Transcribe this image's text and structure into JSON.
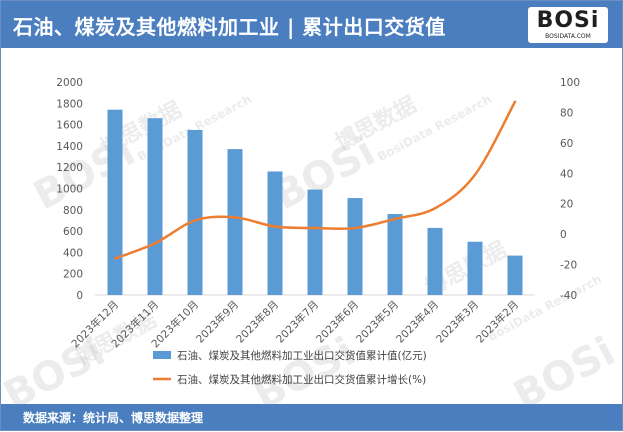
{
  "header": {
    "title": "石油、煤炭及其他燃料加工业 | 累计出口交货值",
    "logo_text": "BOSi",
    "logo_sub": "BOSIDATA.COM"
  },
  "footer": {
    "source": "数据来源：统计局、博思数据整理"
  },
  "watermark": {
    "brand": "BOSi",
    "cn": "博思数据",
    "en": "BosiData Research",
    "site": "BOSIDATA.COM"
  },
  "colors": {
    "header": "#4a7ebf",
    "bar": "#5b9bd5",
    "line": "#ed7d31",
    "axis_text": "#595959",
    "gridline": "#d9d9d9"
  },
  "chart_data": {
    "type": "bar",
    "categories": [
      "2023年12月",
      "2023年11月",
      "2023年10月",
      "2023年9月",
      "2023年8月",
      "2023年7月",
      "2023年6月",
      "2023年5月",
      "2023年4月",
      "2023年3月",
      "2023年2月"
    ],
    "series": [
      {
        "name": "石油、煤炭及其他燃料加工业出口交货值累计值(亿元)",
        "type": "bar",
        "axis": "left",
        "values": [
          1740,
          1660,
          1550,
          1370,
          1160,
          990,
          910,
          760,
          630,
          500,
          370
        ]
      },
      {
        "name": "石油、煤炭及其他燃料加工业出口交货值累计增长(%)",
        "type": "line",
        "axis": "right",
        "values": [
          -16,
          -6,
          9,
          11,
          5,
          4,
          4,
          10,
          17,
          39,
          87
        ]
      }
    ],
    "y_left": {
      "min": 0,
      "max": 2000,
      "step": 200,
      "ticks": [
        0,
        200,
        400,
        600,
        800,
        1000,
        1200,
        1400,
        1600,
        1800,
        2000
      ]
    },
    "y_right": {
      "min": -40,
      "max": 100,
      "step": 20,
      "ticks": [
        -40,
        -20,
        0,
        20,
        40,
        60,
        80,
        100
      ]
    },
    "grid": false,
    "legend_position": "bottom"
  }
}
